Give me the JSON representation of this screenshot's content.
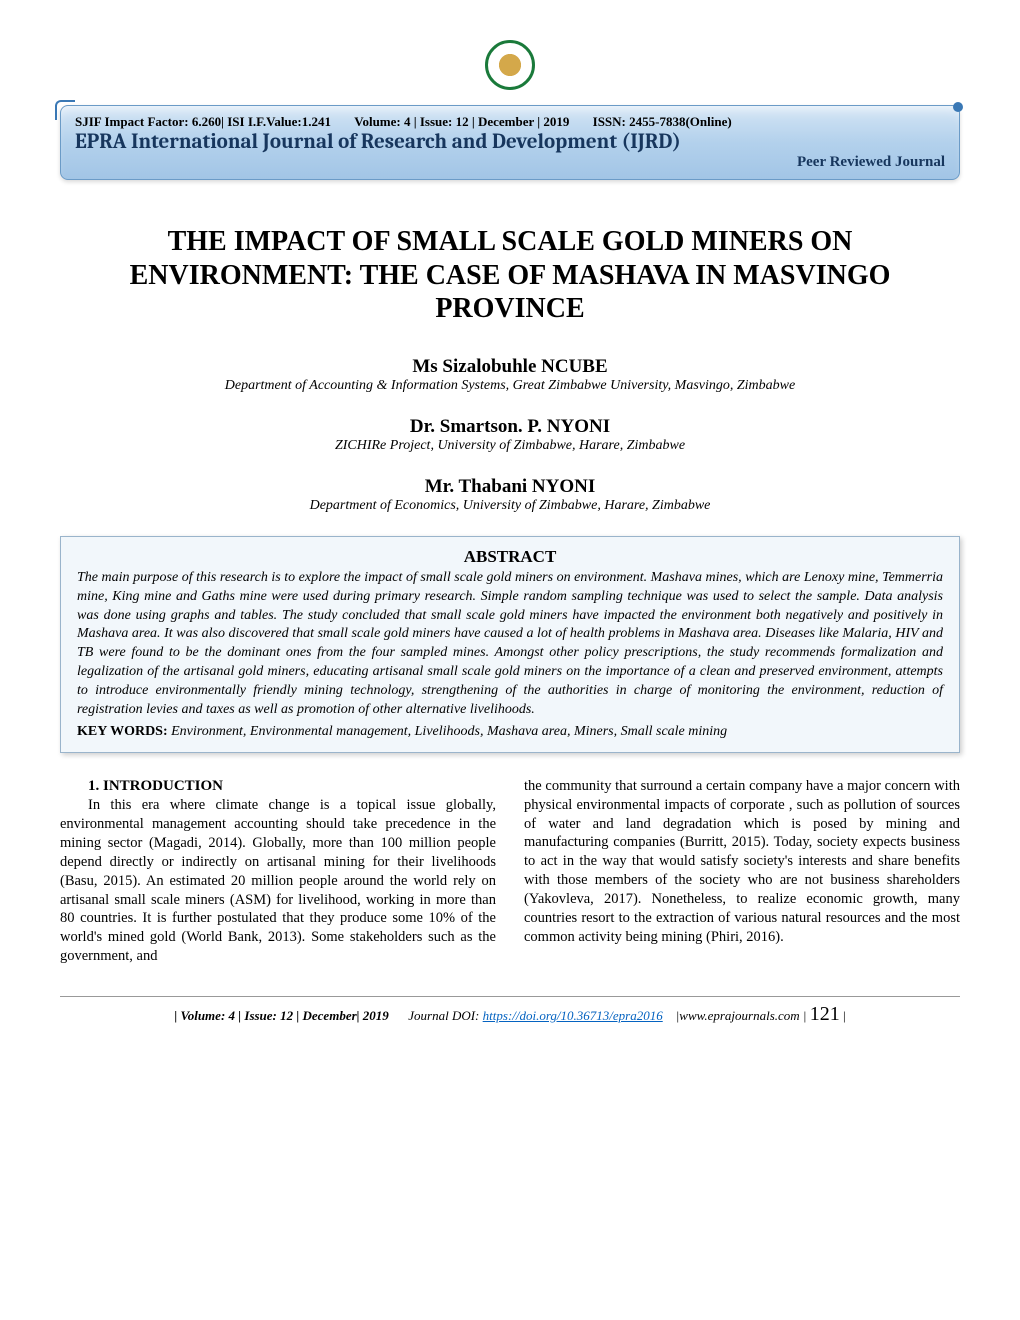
{
  "logo": {
    "name": "epra-logo"
  },
  "banner": {
    "impact": "SJIF Impact Factor: 6.260| ISI I.F.Value:1.241",
    "volinfo": "Volume: 4 | Issue: 12 | December | 2019",
    "issn": "ISSN: 2455-7838(Online)",
    "journal": "EPRA International Journal of Research and Development (IJRD)",
    "peer": "Peer Reviewed Journal",
    "bg_gradient_top": "#d4e5f5",
    "bg_gradient_bot": "#a2c5e6",
    "border_color": "#6b9bc7",
    "title_color": "#17365d"
  },
  "title": "THE IMPACT OF SMALL SCALE GOLD MINERS ON ENVIRONMENT: THE CASE OF MASHAVA IN MASVINGO PROVINCE",
  "authors": [
    {
      "name": "Ms Sizalobuhle NCUBE",
      "aff": "Department of Accounting & Information Systems, Great Zimbabwe University, Masvingo, Zimbabwe"
    },
    {
      "name": "Dr. Smartson. P. NYONI",
      "aff": "ZICHIRe Project, University of Zimbabwe, Harare, Zimbabwe"
    },
    {
      "name": "Mr. Thabani NYONI",
      "aff": "Department of Economics, University of Zimbabwe, Harare, Zimbabwe"
    }
  ],
  "abstract": {
    "heading": "ABSTRACT",
    "text": "The main purpose of this research is to explore the impact of small scale gold miners on environment. Mashava mines, which are Lenoxy mine, Temmerria mine, King mine and Gaths mine were used during primary research. Simple random sampling technique was used to select the sample. Data analysis was done using graphs and tables. The study concluded that small scale gold miners have impacted the environment both negatively and positively in Mashava area. It was also discovered that small scale gold miners have caused a lot of health problems in Mashava area. Diseases like Malaria, HIV and TB were found to be the dominant ones from the four sampled mines. Amongst other policy prescriptions, the study recommends formalization and legalization of the artisanal gold miners, educating artisanal small scale gold miners on the importance of a clean and preserved environment, attempts to introduce environmentally friendly mining technology, strengthening of the authorities in charge of monitoring the environment, reduction of registration levies and taxes as well as promotion of other alternative livelihoods.",
    "kw_label": "KEY WORDS:",
    "kw_text": "Environment, Environmental management, Livelihoods, Mashava area, Miners, Small scale mining",
    "box_bg": "#f2f7fb",
    "box_border": "#9ab4cb"
  },
  "sections": {
    "intro_head": "1.  INTRODUCTION",
    "intro_p1": "In this era where climate change is a topical issue globally, environmental management accounting should take precedence in the mining sector (Magadi, 2014). Globally, more than 100 million people depend directly or indirectly on artisanal mining for their livelihoods (Basu, 2015). An estimated 20 million people around the world rely on artisanal small scale miners (ASM) for livelihood, working in more than 80 countries. It is further postulated that they produce some 10% of the world's mined gold (World Bank, 2013). Some stakeholders such as the government, and",
    "intro_p2": "the community that surround a certain company have a major concern with physical environmental impacts of corporate , such as pollution of sources of water and land degradation which is posed by mining and manufacturing companies (Burritt, 2015). Today, society expects business to act in the way that would satisfy society's interests and share benefits with those members of the society who are not business shareholders (Yakovleva, 2017). Nonetheless, to realize economic growth, many countries resort to the extraction of various natural resources and the most common activity being mining (Phiri, 2016)."
  },
  "footer": {
    "left": "| Volume: 4 |   Issue: 12 | December| 2019",
    "doi_label": "Journal DOI:",
    "doi_url": "https://doi.org/10.36713/epra2016",
    "site": "|www.eprajournals.com |",
    "page": "121",
    "tail": " |",
    "link_color": "#0563c1"
  }
}
